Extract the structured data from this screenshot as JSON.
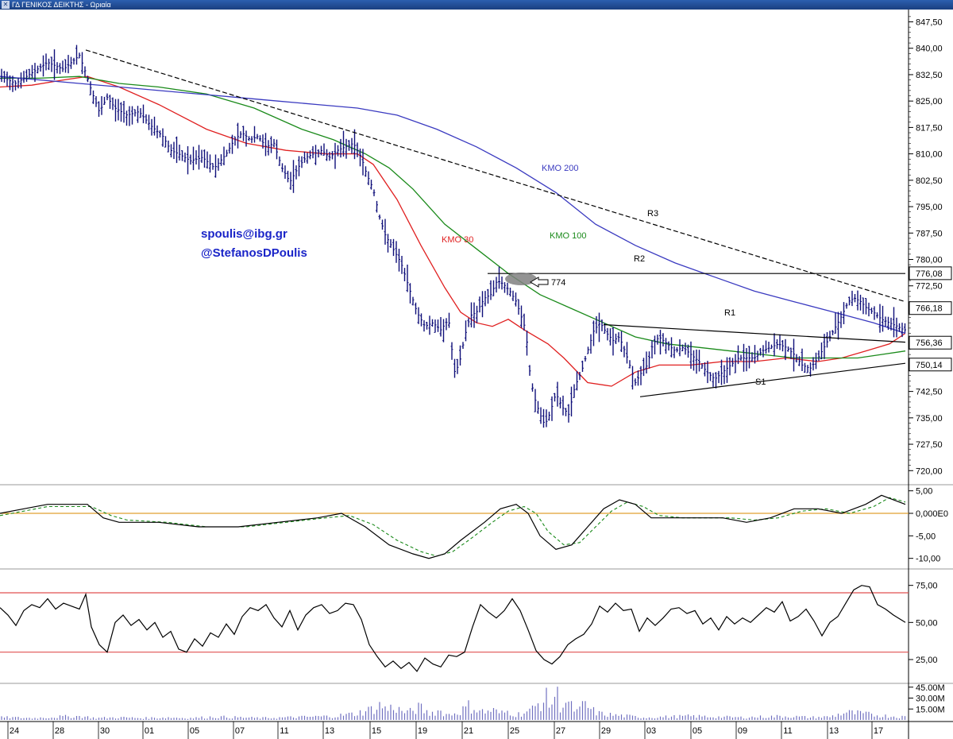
{
  "window": {
    "title": "ΓΔ ΓΕΝΙΚΟΣ ΔΕΙΚΤΗΣ - Ωριαία"
  },
  "credits": {
    "email": "spoulis@ibg.gr",
    "handle": "@StefanosDPoulis"
  },
  "colors": {
    "price": "#10107a",
    "ma30": "#e02020",
    "ma100": "#1a8a1a",
    "ma200": "#3a3ac0",
    "trend": "#000000",
    "macd_zero": "#e0a030",
    "rsi_band": "#e05050",
    "volume": "#7070c0"
  },
  "chart_data": [
    {
      "type": "line",
      "panel": "price",
      "ylim": [
        716,
        851
      ],
      "yticks": [
        "847,50",
        "840,00",
        "832,50",
        "825,00",
        "817,50",
        "810,00",
        "802,50",
        "795,00",
        "787,50",
        "780,00",
        "772,50",
        "742,50",
        "735,00",
        "727,50",
        "720,00"
      ],
      "price_tags": [
        "776,08",
        "766,18",
        "756,36",
        "750,14"
      ],
      "x_labels": [
        "24",
        "28",
        "30",
        "01",
        "05",
        "07",
        "11",
        "13",
        "15",
        "19",
        "21",
        "25",
        "27",
        "29",
        "03",
        "05",
        "09",
        "11",
        "13",
        "17"
      ],
      "series": [
        {
          "name": "",
          "kind": "ohlc",
          "x": [
            0,
            20,
            40,
            60,
            80,
            100,
            108,
            115,
            125,
            135,
            145,
            160,
            175,
            190,
            205,
            215,
            225,
            240,
            255,
            270,
            285,
            295,
            305,
            315,
            325,
            335,
            345,
            355,
            365,
            375,
            385,
            395,
            405,
            415,
            425,
            435,
            445,
            455,
            462,
            470,
            478,
            485,
            495,
            505,
            515,
            525,
            535,
            545,
            555,
            565,
            572,
            578,
            585,
            592,
            600,
            610,
            618,
            626,
            634,
            642,
            650,
            656,
            662,
            668,
            674,
            680,
            686,
            692,
            700,
            708,
            716,
            724,
            732,
            740,
            748,
            756,
            764,
            772,
            780,
            790,
            800,
            808,
            815,
            822,
            830,
            840,
            850,
            860,
            870,
            880,
            890,
            900,
            910,
            920,
            930,
            940,
            950,
            960,
            970,
            980,
            990,
            1000,
            1010,
            1020,
            1030,
            1040,
            1050,
            1060,
            1068,
            1076,
            1084,
            1092,
            1100,
            1110,
            1120,
            1130,
            1138
          ],
          "values": [
            832,
            830,
            833,
            836,
            834,
            838,
            833,
            828,
            822,
            826,
            823,
            821,
            822,
            818,
            815,
            811,
            810,
            808,
            809,
            806,
            810,
            814,
            816,
            814,
            815,
            812,
            813,
            806,
            802,
            806,
            809,
            810,
            811,
            809,
            811,
            812,
            813,
            809,
            804,
            800,
            792,
            787,
            783,
            779,
            772,
            765,
            761,
            762,
            760,
            763,
            748,
            750,
            758,
            764,
            765,
            769,
            770,
            774,
            773,
            771,
            768,
            764,
            760,
            746,
            740,
            736,
            733,
            736,
            742,
            738,
            736,
            744,
            748,
            754,
            760,
            762,
            759,
            757,
            758,
            752,
            745,
            748,
            750,
            756,
            758,
            756,
            754,
            755,
            753,
            751,
            748,
            746,
            748,
            750,
            752,
            752,
            752,
            754,
            755,
            756,
            755,
            753,
            750,
            749,
            752,
            756,
            760,
            764,
            768,
            769,
            768,
            766,
            765,
            763,
            762,
            761,
            760
          ]
        },
        {
          "name": "KMO 30",
          "x": [
            0,
            40,
            80,
            110,
            150,
            200,
            260,
            310,
            360,
            410,
            450,
            470,
            500,
            530,
            560,
            580,
            600,
            620,
            640,
            660,
            690,
            710,
            740,
            770,
            800,
            830,
            870,
            910,
            950,
            990,
            1030,
            1060,
            1090,
            1120,
            1140
          ],
          "values": [
            829,
            829.5,
            831,
            832,
            829,
            824,
            817,
            813,
            811,
            810,
            810,
            807,
            797,
            784,
            772,
            765,
            762,
            761,
            763,
            760,
            756,
            752,
            745,
            744,
            748,
            750,
            750,
            751,
            751,
            752,
            751,
            752,
            754,
            756,
            759
          ]
        },
        {
          "name": "KMO 100",
          "x": [
            0,
            50,
            100,
            150,
            200,
            260,
            320,
            380,
            420,
            460,
            490,
            520,
            560,
            600,
            640,
            680,
            720,
            760,
            800,
            840,
            880,
            920,
            960,
            1000,
            1040,
            1080,
            1110,
            1140
          ],
          "values": [
            831.5,
            831.5,
            832,
            830,
            829,
            827,
            823,
            817,
            814,
            810,
            806,
            800,
            790,
            783,
            776,
            770,
            766,
            762,
            758,
            756,
            755,
            754,
            753,
            752,
            752,
            752,
            753,
            754
          ]
        },
        {
          "name": "KMO 200",
          "x": [
            0,
            100,
            200,
            300,
            350,
            400,
            450,
            500,
            550,
            600,
            650,
            700,
            750,
            800,
            850,
            900,
            950,
            1000,
            1050,
            1100,
            1140
          ],
          "values": [
            832,
            830,
            828,
            826,
            825,
            824,
            823,
            821,
            817,
            812,
            806,
            799,
            790,
            784,
            779,
            775,
            771,
            768,
            765,
            762,
            759
          ]
        },
        {
          "name": "R3",
          "kind": "trendline",
          "x": [
            108,
            1140
          ],
          "values": [
            839.5,
            768
          ]
        },
        {
          "name": "R2",
          "kind": "trendline",
          "x": [
            614,
            1140
          ],
          "values": [
            776,
            776
          ]
        },
        {
          "name": "R1",
          "kind": "trendline",
          "x": [
            760,
            1140
          ],
          "values": [
            761.5,
            756.5
          ]
        },
        {
          "name": "S1",
          "kind": "trendline",
          "x": [
            806,
            1140
          ],
          "values": [
            741,
            750.5
          ]
        }
      ],
      "annotations": [
        {
          "text": "774",
          "x": 655,
          "y": 772
        }
      ]
    },
    {
      "type": "line",
      "panel": "macd",
      "ylim": [
        -12,
        6
      ],
      "yticks": [
        "5,00",
        "0,000E0",
        "-5,00",
        "-10,00"
      ],
      "zero_line": 0,
      "series": [
        {
          "name": "",
          "style": "solid",
          "x": [
            0,
            30,
            60,
            90,
            110,
            130,
            150,
            200,
            250,
            300,
            350,
            400,
            430,
            460,
            490,
            520,
            540,
            560,
            580,
            610,
            630,
            650,
            665,
            680,
            700,
            720,
            740,
            760,
            780,
            800,
            820,
            850,
            880,
            910,
            940,
            970,
            1000,
            1030,
            1060,
            1090,
            1110,
            1140
          ],
          "values": [
            0,
            1,
            2,
            2,
            2,
            -1,
            -2,
            -2,
            -3,
            -3,
            -2,
            -1,
            0,
            -3,
            -7,
            -9,
            -10,
            -9,
            -6,
            -2,
            1,
            2,
            0,
            -5,
            -8,
            -7,
            -3,
            1,
            3,
            2,
            -1,
            -1,
            -1,
            -1,
            -2,
            -1,
            1,
            1,
            0,
            2,
            4,
            2
          ]
        },
        {
          "name": "",
          "style": "dashed",
          "x": [
            0,
            30,
            60,
            90,
            115,
            140,
            160,
            210,
            260,
            310,
            360,
            410,
            440,
            470,
            500,
            530,
            550,
            570,
            590,
            620,
            640,
            660,
            675,
            690,
            710,
            730,
            750,
            770,
            790,
            810,
            830,
            860,
            890,
            920,
            950,
            980,
            1010,
            1040,
            1070,
            1100,
            1120,
            1140
          ],
          "values": [
            -0.5,
            0.5,
            1.5,
            1.5,
            1.5,
            -0.5,
            -1.5,
            -2,
            -3,
            -3,
            -2,
            -1,
            -0.5,
            -2.5,
            -6,
            -8.5,
            -9.5,
            -8.5,
            -6,
            -2,
            0.5,
            1.5,
            0,
            -4,
            -7,
            -6.5,
            -3,
            0.5,
            2.5,
            1.5,
            -0.5,
            -1,
            -1,
            -1,
            -1.5,
            -1,
            0.5,
            1,
            0,
            1.5,
            3.5,
            2.5
          ]
        }
      ]
    },
    {
      "type": "line",
      "panel": "rsi",
      "ylim": [
        10,
        85
      ],
      "yticks": [
        "75,00",
        "50,00",
        "25,00"
      ],
      "bands": [
        70,
        30
      ],
      "series": [
        {
          "name": "",
          "x": [
            0,
            10,
            20,
            30,
            40,
            50,
            60,
            70,
            80,
            90,
            100,
            108,
            115,
            125,
            135,
            145,
            155,
            165,
            175,
            185,
            195,
            205,
            215,
            225,
            235,
            245,
            255,
            265,
            275,
            285,
            295,
            305,
            315,
            325,
            335,
            345,
            355,
            365,
            375,
            385,
            395,
            405,
            415,
            425,
            435,
            445,
            455,
            465,
            475,
            485,
            495,
            505,
            515,
            525,
            535,
            545,
            555,
            565,
            575,
            585,
            595,
            605,
            615,
            625,
            635,
            645,
            655,
            665,
            675,
            685,
            695,
            705,
            715,
            725,
            735,
            745,
            755,
            765,
            775,
            785,
            795,
            805,
            815,
            825,
            835,
            845,
            855,
            865,
            875,
            885,
            895,
            905,
            915,
            925,
            935,
            945,
            955,
            965,
            975,
            985,
            995,
            1005,
            1015,
            1025,
            1035,
            1045,
            1055,
            1065,
            1075,
            1085,
            1095,
            1105,
            1115,
            1125,
            1140
          ],
          "values": [
            60,
            55,
            48,
            58,
            62,
            60,
            66,
            59,
            63,
            61,
            59,
            69,
            47,
            35,
            30,
            50,
            55,
            48,
            52,
            45,
            50,
            40,
            44,
            32,
            30,
            39,
            34,
            43,
            40,
            49,
            42,
            54,
            60,
            58,
            62,
            53,
            47,
            58,
            45,
            55,
            60,
            62,
            56,
            58,
            63,
            62,
            52,
            35,
            27,
            20,
            24,
            19,
            23,
            17,
            26,
            22,
            20,
            28,
            27,
            30,
            47,
            62,
            57,
            53,
            58,
            66,
            58,
            45,
            31,
            25,
            22,
            27,
            35,
            39,
            42,
            49,
            61,
            57,
            63,
            58,
            59,
            44,
            53,
            48,
            53,
            59,
            60,
            56,
            58,
            49,
            53,
            45,
            54,
            49,
            53,
            50,
            55,
            60,
            57,
            64,
            51,
            54,
            59,
            51,
            41,
            50,
            54,
            63,
            72,
            75,
            74,
            62,
            59,
            55,
            50
          ]
        }
      ]
    },
    {
      "type": "bar",
      "panel": "volume",
      "ylim": [
        0,
        48
      ],
      "yticks": [
        "45.00M",
        "30.00M",
        "15.00M"
      ],
      "series": [
        {
          "name": "",
          "x": [
            12,
            42,
            72,
            102,
            120,
            150,
            180,
            210,
            240,
            270,
            300,
            330,
            360,
            390,
            420,
            448,
            470,
            480,
            488,
            496,
            505,
            515,
            528,
            540,
            552,
            565,
            580,
            590,
            600,
            610,
            620,
            630,
            640,
            650,
            660,
            670,
            680,
            688,
            694,
            700,
            706,
            712,
            720,
            728,
            736,
            744,
            755,
            770,
            790,
            810,
            840,
            870,
            900,
            930,
            960,
            990,
            1020,
            1045,
            1065,
            1085,
            1100,
            1120,
            1135
          ],
          "values": [
            4,
            3,
            5,
            6,
            3,
            4,
            3,
            4,
            3,
            5,
            4,
            3,
            4,
            5,
            6,
            10,
            18,
            24,
            16,
            22,
            14,
            12,
            20,
            10,
            15,
            8,
            14,
            22,
            18,
            12,
            16,
            10,
            14,
            8,
            12,
            16,
            28,
            34,
            24,
            46,
            22,
            30,
            20,
            12,
            26,
            16,
            10,
            8,
            6,
            4,
            5,
            6,
            5,
            4,
            5,
            6,
            4,
            5,
            12,
            10,
            8,
            6,
            5
          ]
        }
      ]
    }
  ]
}
